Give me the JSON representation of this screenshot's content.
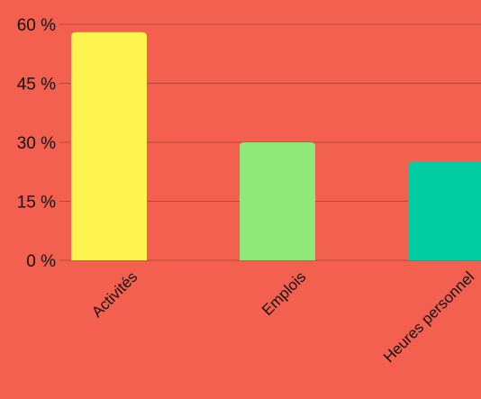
{
  "colors": {
    "background": "#f4604f",
    "grid": "#b3483b",
    "text": "#111111",
    "bars": [
      "#fff44f",
      "#90e878",
      "#00cca3"
    ]
  },
  "chart_data": {
    "type": "bar",
    "categories": [
      "Activités",
      "Emplois",
      "Heures personnel"
    ],
    "values": [
      58,
      30,
      25
    ],
    "ylim": [
      0,
      60
    ],
    "yticks": [
      0,
      15,
      30,
      45,
      60
    ],
    "ytick_labels": [
      "0 %",
      "15 %",
      "30 %",
      "45 %",
      "60 %"
    ],
    "grid": true,
    "legend": "none"
  }
}
